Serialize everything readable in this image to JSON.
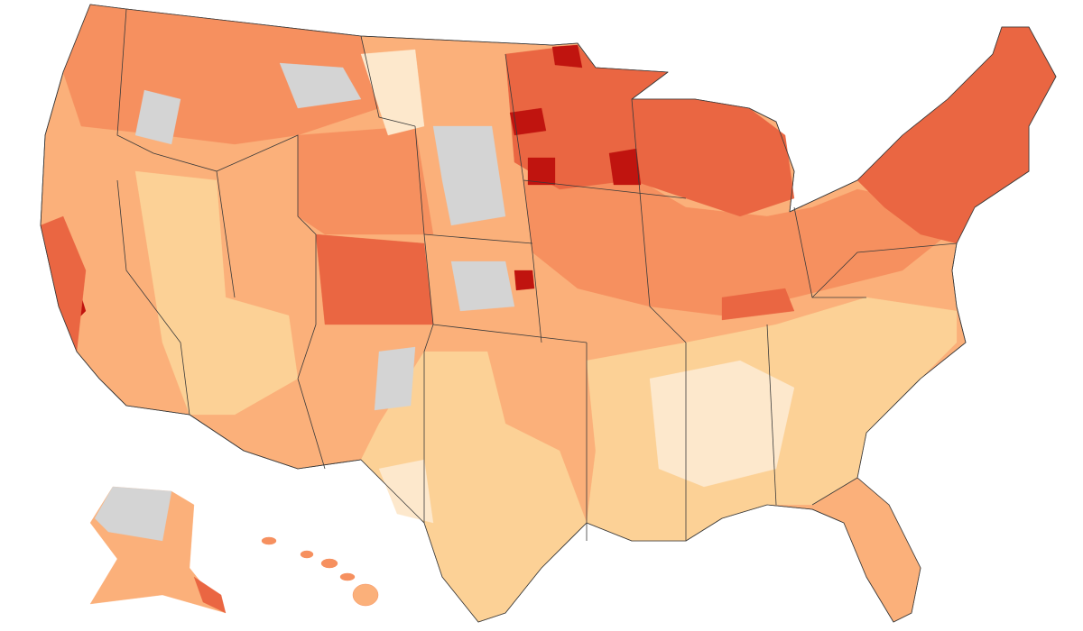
{
  "map": {
    "palette": [
      "#fde8cc",
      "#fcd196",
      "#fbb07a",
      "#f6905f",
      "#ea6642",
      "#c0140f",
      "#d4d4d4"
    ],
    "background": "#ffffff",
    "border": "#3a3a3a"
  }
}
